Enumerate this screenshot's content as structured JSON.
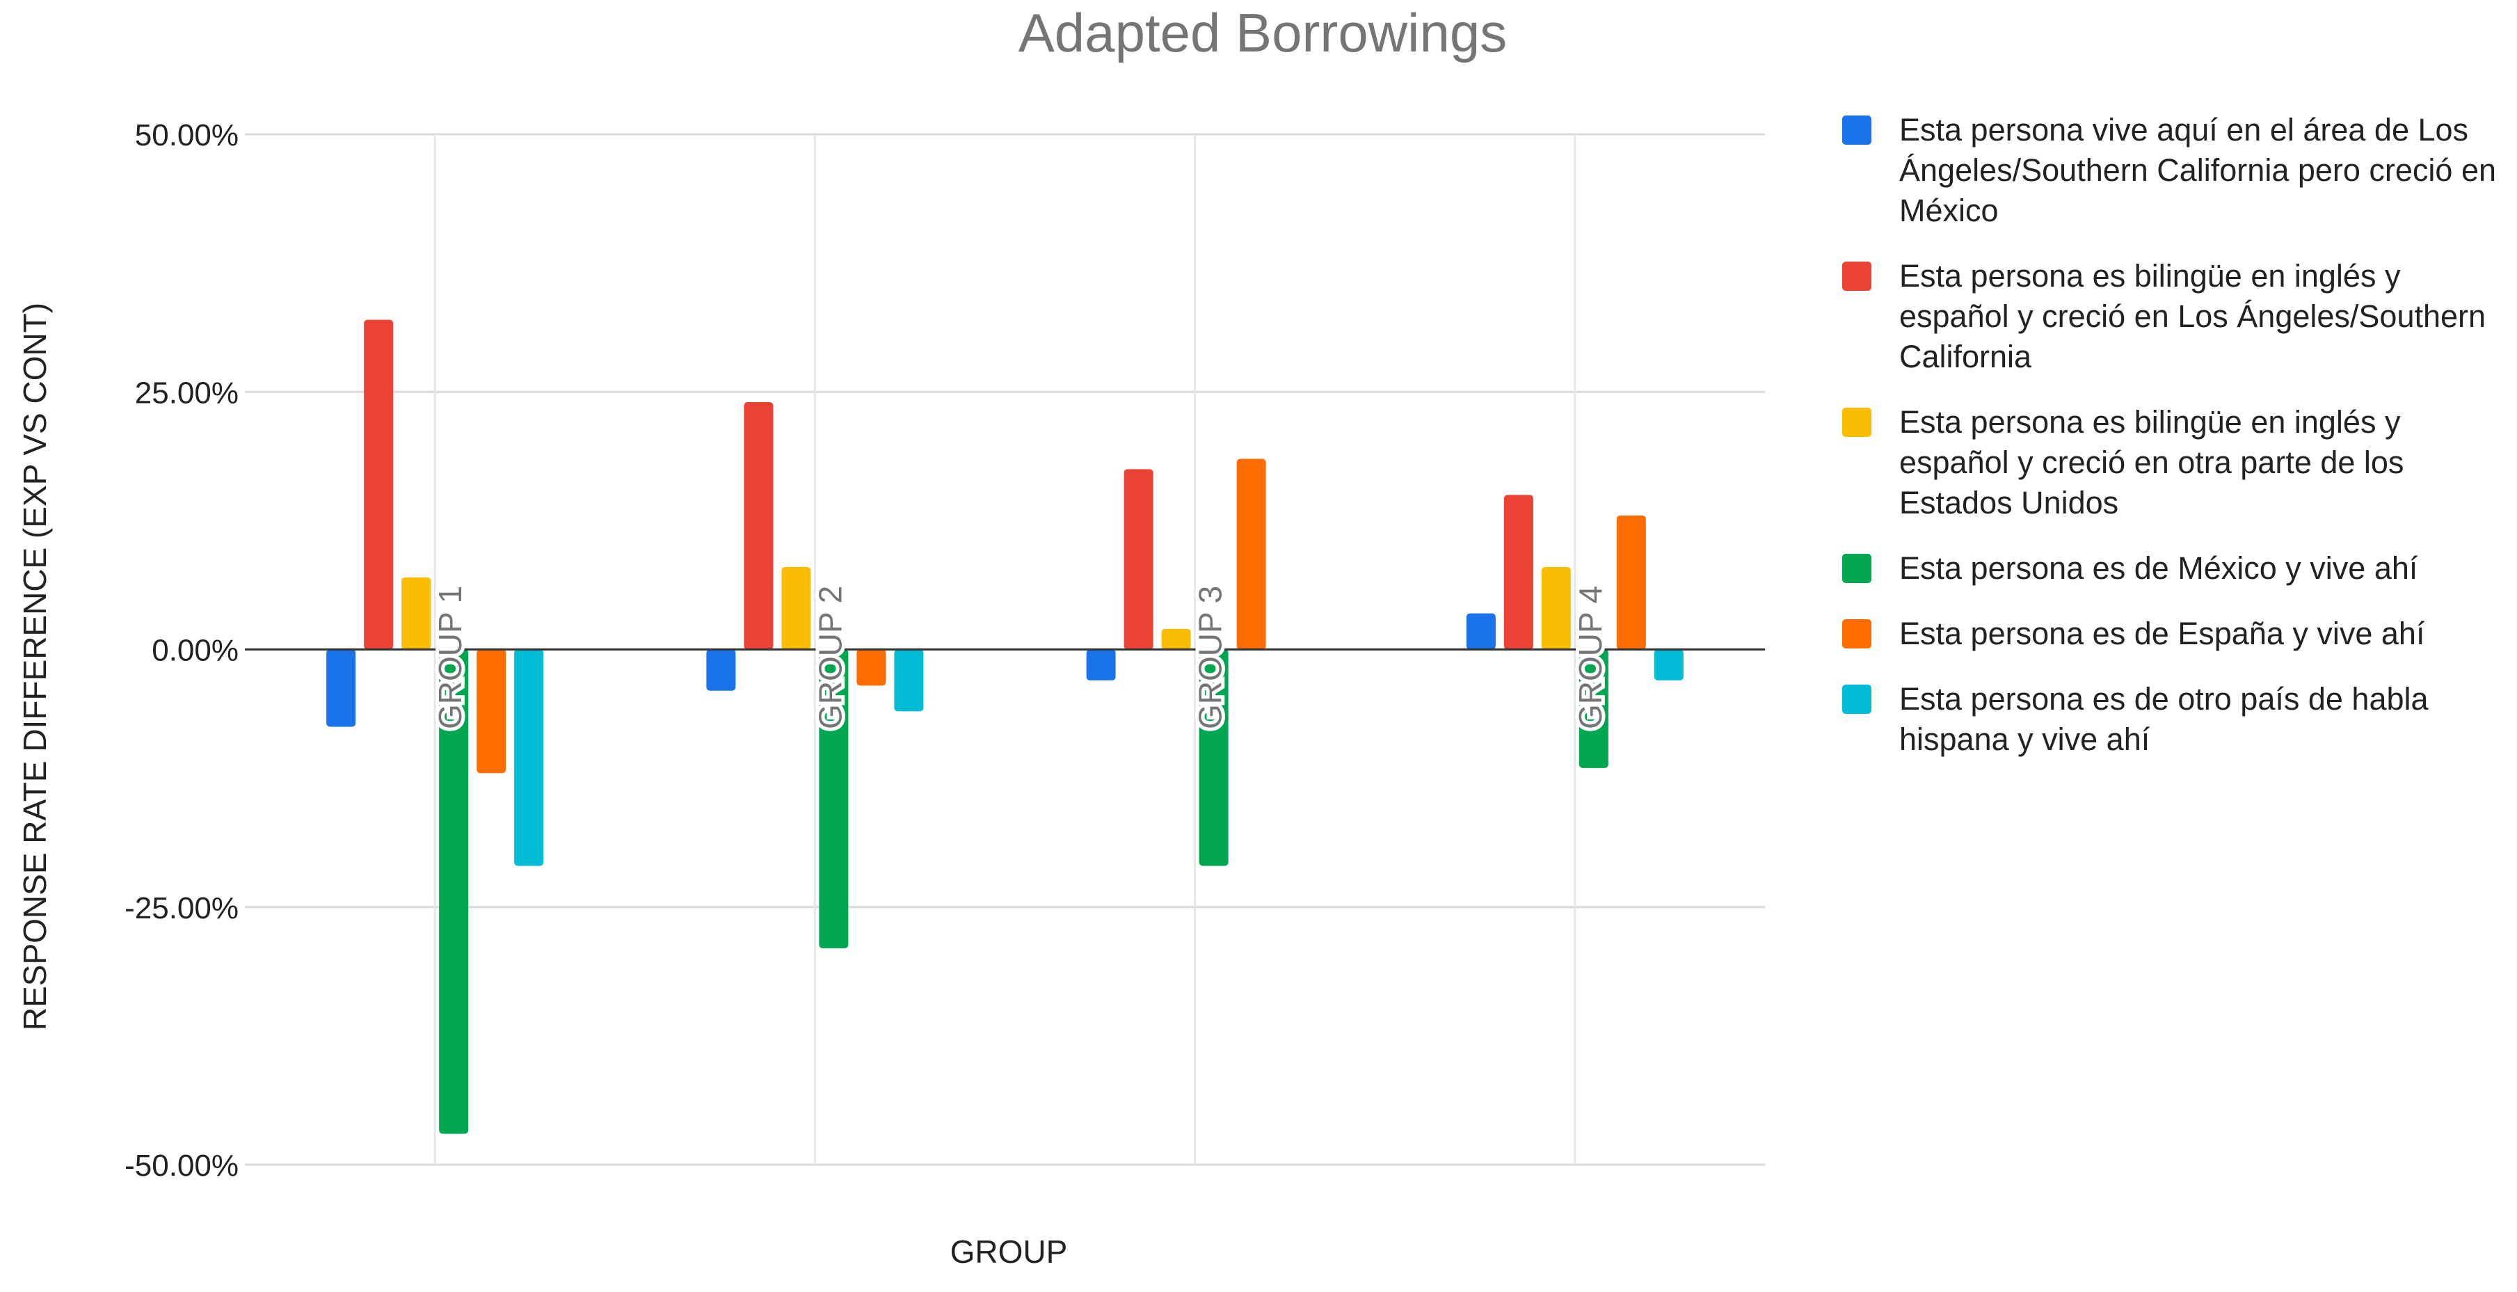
{
  "chart_data": {
    "type": "bar",
    "title": "Adapted Borrowings",
    "xlabel": "GROUP",
    "ylabel": "RESPONSE RATE DIFFERENCE (EXP VS CONT)",
    "categories": [
      "GROUP 1",
      "GROUP 2",
      "GROUP 3",
      "GROUP 4"
    ],
    "ylim": [
      -0.5,
      0.5
    ],
    "yticks": [
      0.5,
      0.25,
      0,
      -0.25,
      -0.5
    ],
    "ytick_labels": [
      "50.00%",
      "25.00%",
      "0.00%",
      "-25.00%",
      "-50.00%"
    ],
    "grid": true,
    "legend_position": "right",
    "series": [
      {
        "name": "Esta persona vive aquí en el área de Los Ángeles/Southern California pero creció en México",
        "color": "#1a73e8",
        "values": [
          -0.075,
          -0.04,
          -0.03,
          0.035
        ]
      },
      {
        "name": "Esta persona es bilingüe en inglés y español y creció en Los Ángeles/Southern California",
        "color": "#ea4335",
        "values": [
          0.32,
          0.24,
          0.175,
          0.15
        ]
      },
      {
        "name": "Esta persona es bilingüe en inglés y español y creció en otra parte de los Estados Unidos",
        "color": "#fbbc04",
        "values": [
          0.07,
          0.08,
          0.02,
          0.08
        ]
      },
      {
        "name": "Esta persona es de México y vive ahí",
        "color": "#00a650",
        "values": [
          -0.47,
          -0.29,
          -0.21,
          -0.115
        ]
      },
      {
        "name": "Esta persona es de España y vive ahí",
        "color": "#ff6d00",
        "values": [
          -0.12,
          -0.035,
          0.185,
          0.13
        ]
      },
      {
        "name": "Esta persona es de otro país de habla hispana y vive ahí",
        "color": "#00bcd4",
        "values": [
          -0.21,
          -0.06,
          0.0,
          -0.03
        ]
      }
    ]
  }
}
